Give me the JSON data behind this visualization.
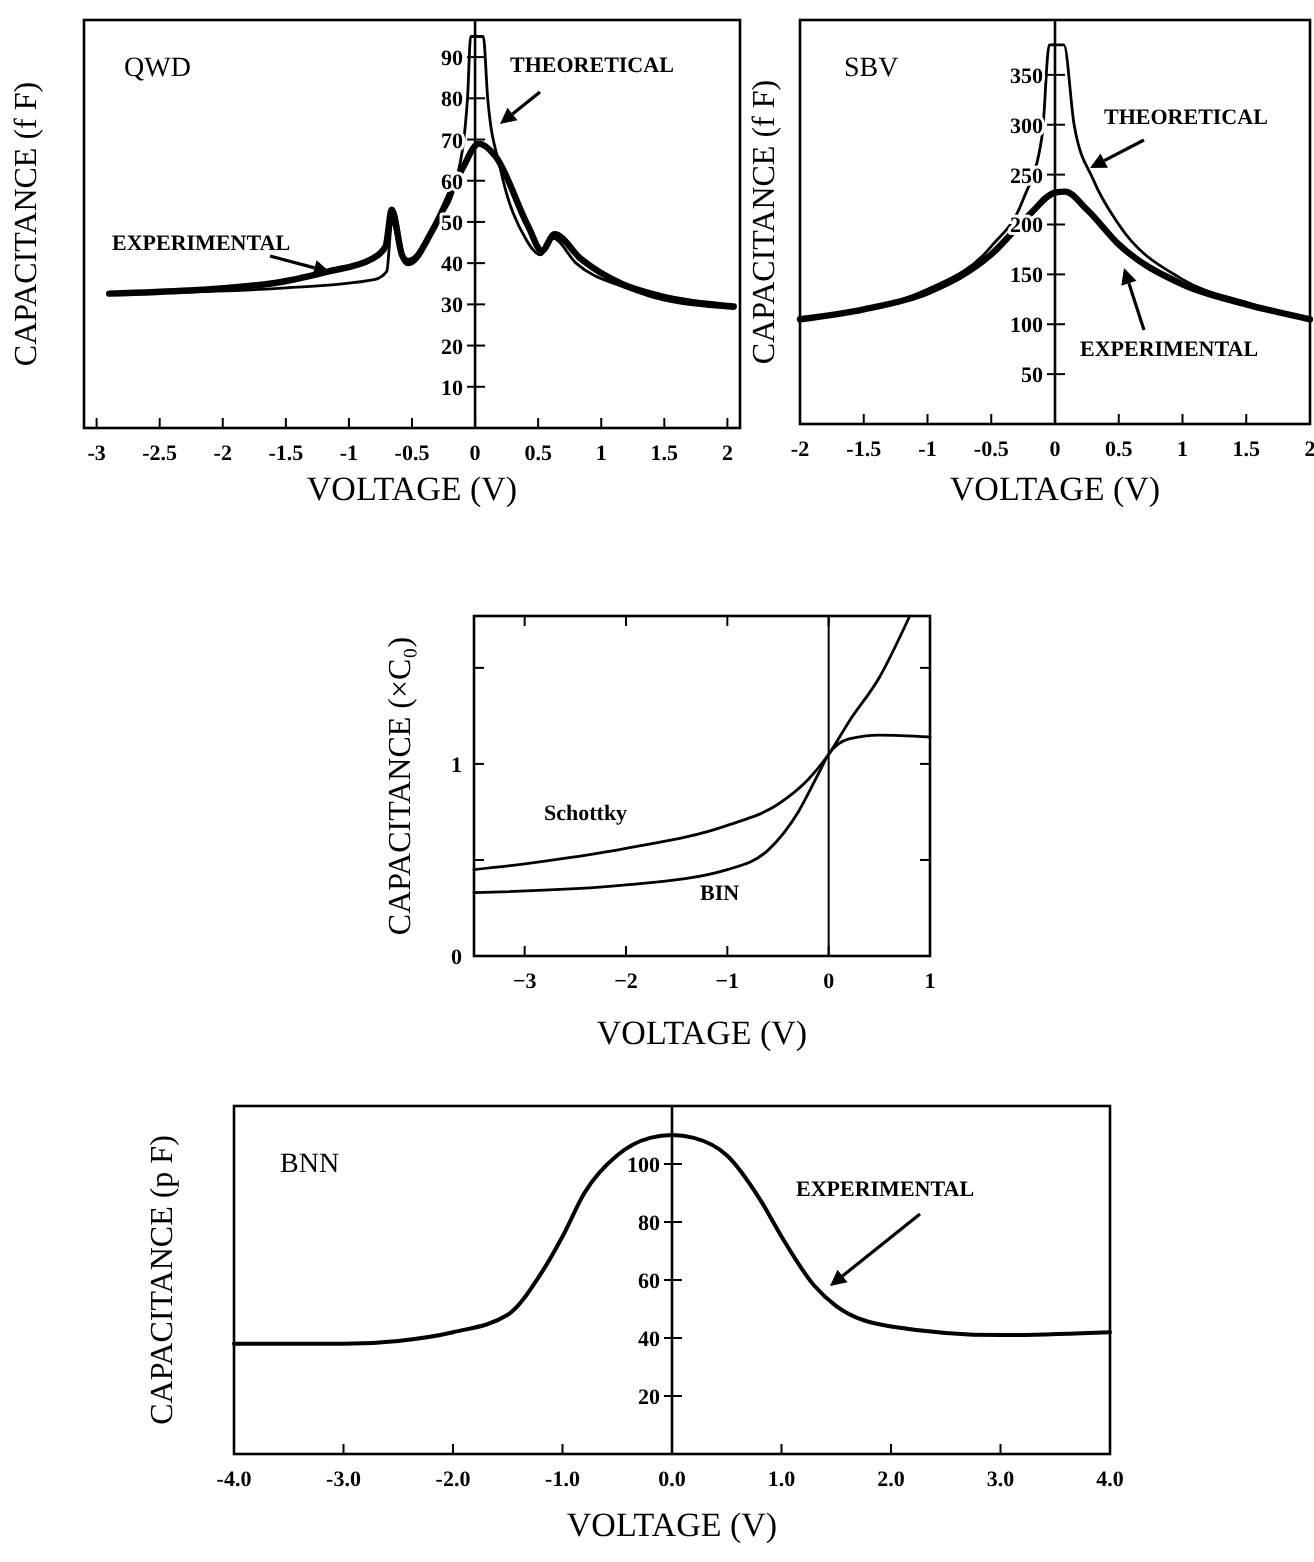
{
  "chart_data": [
    {
      "type": "line",
      "title": "QWD",
      "xlabel": "VOLTAGE (V)",
      "ylabel": "CAPACITANCE (f F)",
      "xlim": [
        -3.1,
        2.1
      ],
      "ylim": [
        0,
        99
      ],
      "xticks": [
        -3,
        -2.5,
        -2,
        -1.5,
        -1,
        -0.5,
        0,
        0.5,
        1,
        1.5,
        2
      ],
      "yticks": [
        10,
        20,
        30,
        40,
        50,
        60,
        70,
        80,
        90
      ],
      "series": [
        {
          "name": "EXPERIMENTAL",
          "color": "#000000",
          "x": [
            -2.9,
            -1.63,
            -1.16,
            -0.82,
            -0.71,
            -0.66,
            -0.58,
            -0.53,
            -0.32,
            -0.1,
            0.03,
            0.16,
            0.42,
            0.53,
            0.63,
            0.84,
            1.16,
            1.47,
            2.05
          ],
          "values": [
            32.6,
            35,
            38,
            41,
            44,
            53,
            42,
            40,
            49,
            63,
            69,
            66,
            49,
            43,
            47,
            41,
            35,
            32,
            29.5
          ]
        },
        {
          "name": "THEORETICAL",
          "color": "#000000",
          "x": [
            -2.9,
            -1.5,
            -0.8,
            -0.7,
            -0.66,
            -0.6,
            -0.53,
            -0.3,
            -0.15,
            -0.06,
            -0.035,
            0.065,
            0.1,
            0.2,
            0.4,
            0.52,
            0.62,
            0.8,
            1.2,
            1.5,
            2.05
          ],
          "values": [
            32.6,
            34,
            36,
            38,
            50,
            44,
            41,
            50,
            60,
            80,
            95,
            95,
            80,
            63,
            46,
            42,
            46,
            40,
            34,
            31,
            29
          ]
        }
      ]
    },
    {
      "type": "line",
      "title": "SBV",
      "xlabel": "VOLTAGE (V)",
      "ylabel": "CAPACITANCE (f F)",
      "xlim": [
        -2,
        2
      ],
      "ylim": [
        0,
        405
      ],
      "xticks": [
        -2,
        -1.5,
        -1,
        -0.5,
        0,
        0.5,
        1,
        1.5,
        2
      ],
      "yticks": [
        50,
        100,
        150,
        200,
        250,
        300,
        350
      ],
      "series": [
        {
          "name": "EXPERIMENTAL",
          "color": "#000000",
          "x": [
            -2,
            -1.5,
            -1,
            -0.5,
            -0.2,
            0,
            0.08,
            0.25,
            0.5,
            1,
            1.5,
            2
          ],
          "values": [
            105,
            115,
            132,
            170,
            210,
            232,
            233,
            215,
            180,
            140,
            120,
            105
          ]
        },
        {
          "name": "THEORETICAL",
          "color": "#000000",
          "x": [
            -2,
            -1,
            -0.5,
            -0.25,
            -0.1,
            -0.045,
            0.07,
            0.15,
            0.3,
            0.5,
            1,
            1.5,
            2
          ],
          "values": [
            105,
            135,
            178,
            225,
            290,
            380,
            380,
            300,
            245,
            200,
            145,
            122,
            105
          ]
        }
      ]
    },
    {
      "type": "line",
      "xlabel": "VOLTAGE (V)",
      "ylabel": "CAPACITANCE (×C₀)",
      "xlim": [
        -3.5,
        1
      ],
      "ylim": [
        0,
        1.77
      ],
      "xticks": [
        {
          "value": -3,
          "label": "−3"
        },
        {
          "value": -2,
          "label": "−2"
        },
        {
          "value": -1,
          "label": "−1"
        },
        0,
        1
      ],
      "yticks": [
        0,
        {
          "value": 0.5,
          "label": null
        },
        1,
        {
          "value": 1.5,
          "label": null
        }
      ],
      "ref_lines": [
        {
          "axis": "x",
          "value": 0
        }
      ],
      "series": [
        {
          "name": "Schottky",
          "color": "#000000",
          "x": [
            -3.5,
            -3,
            -2,
            -1,
            -0.5,
            -0.2,
            0,
            0.2,
            0.5,
            0.8
          ],
          "values": [
            0.45,
            0.48,
            0.56,
            0.68,
            0.79,
            0.92,
            1.05,
            1.22,
            1.45,
            1.77
          ]
        },
        {
          "name": "BIN",
          "color": "#000000",
          "x": [
            -3.5,
            -2,
            -1,
            -0.6,
            -0.3,
            -0.1,
            0,
            0.2,
            0.5,
            1
          ],
          "values": [
            0.33,
            0.37,
            0.45,
            0.55,
            0.75,
            0.95,
            1.05,
            1.13,
            1.15,
            1.14
          ]
        }
      ]
    },
    {
      "type": "line",
      "title": "BNN",
      "xlabel": "VOLTAGE (V)",
      "ylabel": "CAPACITANCE (p F)",
      "xlim": [
        -4,
        4
      ],
      "ylim": [
        0,
        120
      ],
      "xticks": [
        {
          "value": -4,
          "label": "-4.0"
        },
        {
          "value": -3,
          "label": "-3.0"
        },
        {
          "value": -2,
          "label": "-2.0"
        },
        {
          "value": -1,
          "label": "-1.0"
        },
        {
          "value": 0,
          "label": "0.0"
        },
        {
          "value": 1,
          "label": "1.0"
        },
        {
          "value": 2,
          "label": "2.0"
        },
        {
          "value": 3,
          "label": "3.0"
        },
        {
          "value": 4,
          "label": "4.0"
        }
      ],
      "yticks": [
        20,
        40,
        60,
        80,
        100
      ],
      "series": [
        {
          "name": "EXPERIMENTAL",
          "color": "#000000",
          "x": [
            -4,
            -3,
            -2.5,
            -2,
            -1.5,
            -1.2,
            -1,
            -0.8,
            -0.5,
            -0.2,
            0,
            0.2,
            0.5,
            0.8,
            1,
            1.3,
            1.5,
            2,
            3,
            4
          ],
          "values": [
            38,
            38,
            39,
            42,
            48,
            62,
            75,
            90,
            103,
            109,
            110,
            109,
            103,
            88,
            75,
            58,
            51,
            44,
            41,
            42
          ]
        }
      ]
    }
  ]
}
